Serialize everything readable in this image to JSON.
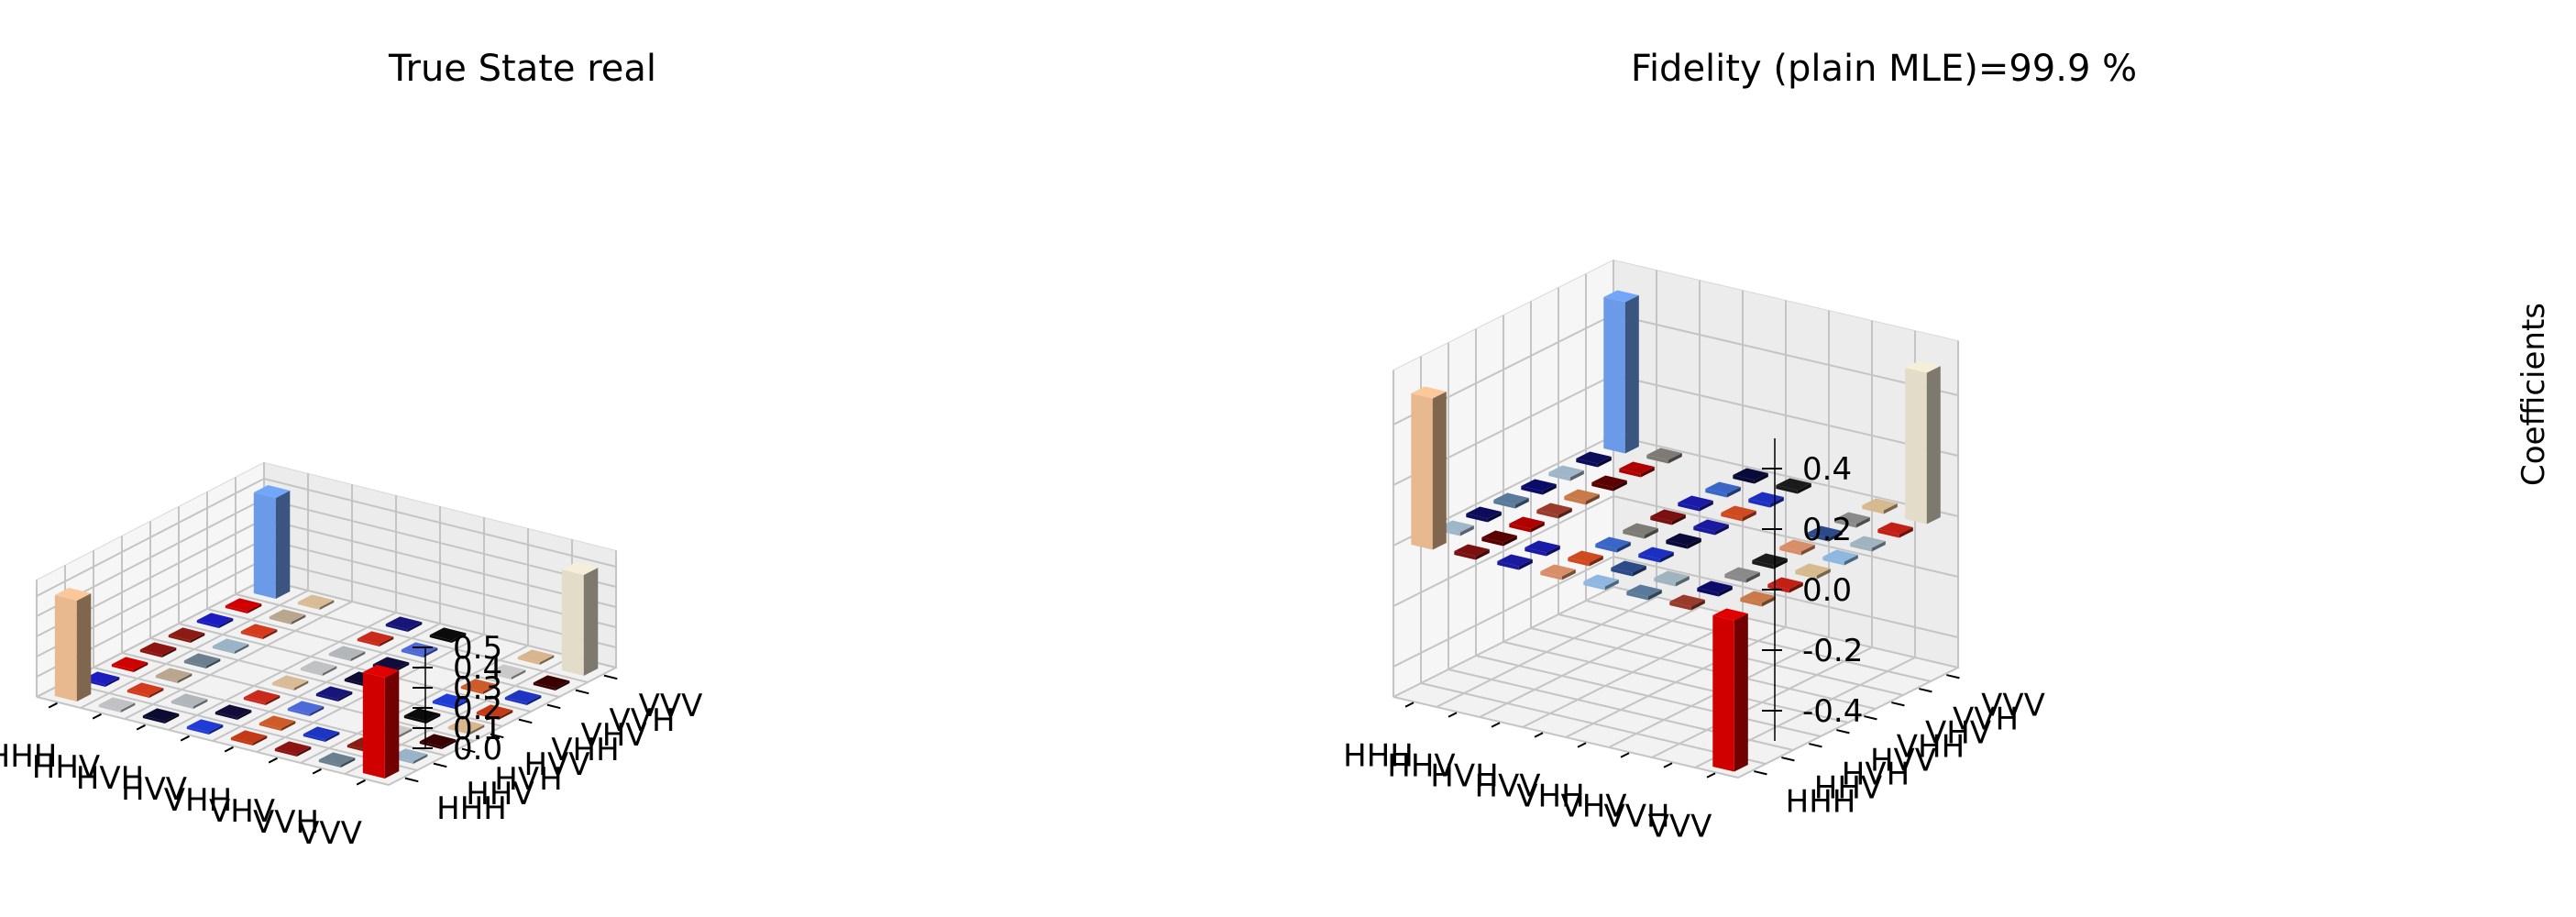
{
  "chart_data": [
    {
      "type": "bar3d",
      "title": "True State real",
      "row_labels": [
        "HHH",
        "HHV",
        "HVH",
        "HVV",
        "VHH",
        "VHV",
        "VVH",
        "VVV"
      ],
      "col_labels": [
        "HHH",
        "HHV",
        "HVH",
        "HVV",
        "VHH",
        "VHV",
        "VVH",
        "VVV"
      ],
      "zlabel": "",
      "zlim": [
        0.0,
        0.5
      ],
      "zticks": [
        "0.0",
        "0.1",
        "0.2",
        "0.3",
        "0.4",
        "0.5"
      ],
      "bars": [
        {
          "row": "HHH",
          "col": "HHH",
          "value": 0.5,
          "color": "#e8b98e"
        },
        {
          "row": "HHH",
          "col": "VVV",
          "value": 0.5,
          "color": "#d00000"
        },
        {
          "row": "VVV",
          "col": "HHH",
          "value": 0.5,
          "color": "#6a9ae8"
        },
        {
          "row": "VVV",
          "col": "VVV",
          "value": 0.5,
          "color": "#e3dcc8"
        }
      ],
      "zero_bar_colors": [
        "#d9bb98",
        "#17157a",
        "#0b0b0b",
        "#d9b58e",
        "#d00000",
        "#b9a68f",
        "#c92a1c",
        "#4d6ad8",
        "#c9c9c9",
        "#3a0000",
        "#1b1bbf",
        "#d43a1c",
        "#b0b6ba",
        "#120c3a",
        "#cf5a2a",
        "#1d35c2",
        "#8a1c14",
        "#9ab3c6",
        "#bfc1c4",
        "#0c0c32",
        "#1f3cd6",
        "#c43a16",
        "#8e1414",
        "#6b7f8f"
      ]
    },
    {
      "type": "bar3d",
      "title": "Fidelity (plain MLE)=99.9 %",
      "row_labels": [
        "HHH",
        "HHV",
        "HVH",
        "HVV",
        "VHH",
        "VHV",
        "VVH",
        "VVV"
      ],
      "col_labels": [
        "HHH",
        "HHV",
        "HVH",
        "HVV",
        "VHH",
        "VHV",
        "VVH",
        "VVV"
      ],
      "zlabel": "Coefficients",
      "zlim": [
        -0.5,
        0.5
      ],
      "zticks": [
        "-0.4",
        "-0.2",
        "0.0",
        "0.2",
        "0.4"
      ],
      "bars": [
        {
          "row": "HHH",
          "col": "HHH",
          "value": 0.5,
          "color": "#e8b98e"
        },
        {
          "row": "HHH",
          "col": "VVV",
          "value": -0.5,
          "color": "#d00000"
        },
        {
          "row": "VVV",
          "col": "HHH",
          "value": 0.5,
          "color": "#6a9ae8"
        },
        {
          "row": "VVV",
          "col": "VVV",
          "value": 0.5,
          "color": "#e3dcc8"
        }
      ],
      "zero_bar_colors": [
        "#7e7a74",
        "#0a0a3a",
        "#1b1b1b",
        "#d6b98e",
        "#0c0c5a",
        "#b00000",
        "#3a66c8",
        "#1d2fc0",
        "#8a8a8a",
        "#c22014",
        "#9fb6c8",
        "#5a0000",
        "#1a1aa8",
        "#d04a20",
        "#2c4a8a",
        "#a0b4c0",
        "#0b0b6a",
        "#c87a4a",
        "#7a1010",
        "#1a1aa0",
        "#d98e6a",
        "#8fb8e0",
        "#5a7a9a",
        "#9a3a2a"
      ]
    }
  ]
}
